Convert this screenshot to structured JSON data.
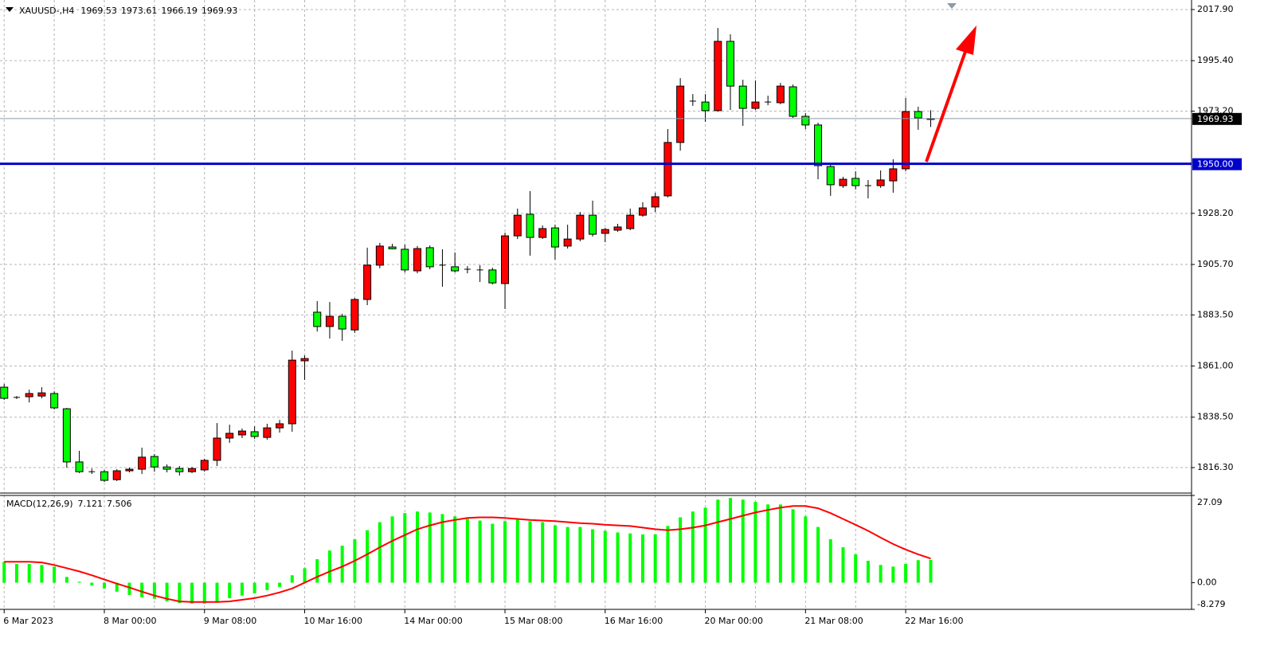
{
  "chart_data": [
    {
      "type": "candlestick",
      "symbol": "XAUUSD-,H4",
      "categories": [
        "6 Mar 2023",
        null,
        null,
        null,
        null,
        null,
        null,
        null,
        "8 Mar 00:00",
        null,
        null,
        null,
        null,
        null,
        null,
        null,
        "9 Mar 08:00",
        null,
        null,
        null,
        null,
        null,
        null,
        null,
        "10 Mar 16:00",
        null,
        null,
        null,
        null,
        null,
        null,
        null,
        "14 Mar 00:00",
        null,
        null,
        null,
        null,
        null,
        null,
        null,
        "15 Mar 08:00",
        null,
        null,
        null,
        null,
        null,
        null,
        null,
        "16 Mar 16:00",
        null,
        null,
        null,
        null,
        null,
        null,
        null,
        "20 Mar 00:00",
        null,
        null,
        null,
        null,
        null,
        null,
        null,
        "21 Mar 08:00",
        null,
        null,
        null,
        null,
        null,
        null,
        null,
        "22 Mar 16:00",
        null,
        null
      ],
      "open": [
        1851.7,
        1847.2,
        1847.5,
        1847.8,
        1848.9,
        1842.2,
        1818.8,
        1814.5,
        1814.5,
        1811.0,
        1814.9,
        1815.6,
        1821.2,
        1816.6,
        1815.9,
        1814.5,
        1815.3,
        1819.5,
        1829.3,
        1830.7,
        1832.1,
        1829.6,
        1833.8,
        1835.6,
        1863.3,
        1884.7,
        1878.4,
        1882.9,
        1876.9,
        1890.3,
        1905.4,
        1913.4,
        1912.4,
        1902.9,
        1913.1,
        1905.4,
        1904.7,
        1903.6,
        1903.3,
        1903.3,
        1897.3,
        1918.3,
        1927.8,
        1917.6,
        1921.8,
        1913.8,
        1916.9,
        1927.4,
        1919.4,
        1920.8,
        1921.5,
        1927.4,
        1931.0,
        1935.9,
        1959.4,
        1977.6,
        1977.2,
        1973.4,
        2003.9,
        1984.2,
        1974.4,
        1977.2,
        1976.9,
        1983.9,
        1970.9,
        1967.1,
        1948.8,
        1940.4,
        1943.6,
        1940.4,
        1940.4,
        1942.5,
        1947.8,
        1973.0,
        1969.53
      ],
      "high": [
        1853.1,
        1847.8,
        1850.6,
        1851.7,
        1849.9,
        1842.6,
        1823.7,
        1815.9,
        1815.3,
        1815.6,
        1816.3,
        1825.1,
        1822.3,
        1817.7,
        1817.0,
        1816.6,
        1820.2,
        1835.9,
        1835.2,
        1833.5,
        1834.5,
        1835.6,
        1837.3,
        1867.8,
        1865.7,
        1889.6,
        1889.2,
        1884.0,
        1891.0,
        1913.1,
        1915.2,
        1914.8,
        1914.5,
        1913.8,
        1914.1,
        1912.4,
        1911.0,
        1905.0,
        1905.4,
        1904.3,
        1919.7,
        1930.3,
        1938.0,
        1922.9,
        1923.2,
        1923.2,
        1928.8,
        1933.8,
        1921.8,
        1923.6,
        1930.3,
        1933.1,
        1937.3,
        1965.3,
        1987.7,
        1980.7,
        1980.7,
        2009.8,
        2007.0,
        1987.0,
        1986.7,
        1980.0,
        1985.6,
        1984.9,
        1972.3,
        1968.1,
        1949.9,
        1944.3,
        1946.7,
        1942.9,
        1947.1,
        1952.0,
        1979.0,
        1975.1,
        1973.61
      ],
      "low": [
        1846.1,
        1846.5,
        1845.0,
        1846.8,
        1841.9,
        1816.3,
        1813.9,
        1813.5,
        1810.0,
        1810.4,
        1814.2,
        1813.5,
        1814.5,
        1814.2,
        1812.8,
        1813.9,
        1814.5,
        1817.0,
        1827.2,
        1829.3,
        1828.9,
        1828.6,
        1831.7,
        1832.1,
        1854.9,
        1876.2,
        1873.1,
        1872.1,
        1875.6,
        1887.8,
        1904.0,
        1912.4,
        1902.2,
        1901.8,
        1903.6,
        1895.9,
        1902.2,
        1901.8,
        1898.0,
        1896.9,
        1886.1,
        1916.9,
        1909.6,
        1916.9,
        1907.8,
        1912.7,
        1915.9,
        1918.0,
        1915.5,
        1920.1,
        1920.8,
        1926.7,
        1928.8,
        1935.2,
        1955.8,
        1975.5,
        1968.5,
        1973.0,
        1973.7,
        1966.7,
        1973.7,
        1975.8,
        1976.2,
        1970.2,
        1965.3,
        1943.2,
        1935.9,
        1939.4,
        1938.7,
        1934.8,
        1939.4,
        1937.3,
        1946.7,
        1965.0,
        1966.19
      ],
      "close": [
        1846.8,
        1847.0,
        1848.9,
        1849.2,
        1842.6,
        1818.8,
        1814.5,
        1814.3,
        1810.7,
        1814.9,
        1815.6,
        1820.9,
        1816.6,
        1815.6,
        1814.5,
        1815.9,
        1819.5,
        1829.3,
        1831.4,
        1832.4,
        1830.0,
        1833.8,
        1835.6,
        1863.6,
        1864.3,
        1878.4,
        1882.9,
        1877.3,
        1890.3,
        1905.4,
        1913.8,
        1912.6,
        1903.3,
        1912.7,
        1904.7,
        1905.2,
        1902.9,
        1903.5,
        1903.1,
        1897.6,
        1918.3,
        1927.4,
        1917.6,
        1921.5,
        1913.4,
        1916.9,
        1927.4,
        1919.0,
        1921.1,
        1922.2,
        1927.4,
        1930.6,
        1935.5,
        1959.4,
        1984.2,
        1977.4,
        1973.4,
        2003.9,
        1984.2,
        1974.4,
        1977.2,
        1977.0,
        1984.2,
        1970.9,
        1967.1,
        1949.2,
        1940.8,
        1943.2,
        1940.4,
        1940.2,
        1942.9,
        1947.8,
        1973.0,
        1970.2,
        1969.93
      ],
      "up_color": "#ff0000",
      "down_color": "#00ff00",
      "ylim": [
        1805.1,
        2022.1
      ],
      "yticks": [
        {
          "value": 2017.9,
          "label": "2017.90"
        },
        {
          "value": 1995.4,
          "label": "1995.40"
        },
        {
          "value": 1973.2,
          "label": "1973.20"
        },
        {
          "value": 1928.2,
          "label": "1928.20"
        },
        {
          "value": 1905.7,
          "label": "1905.70"
        },
        {
          "value": 1883.5,
          "label": "1883.50"
        },
        {
          "value": 1861,
          "label": "1861.00"
        },
        {
          "value": 1838.5,
          "label": "1838.50"
        },
        {
          "value": 1816.3,
          "label": "1816.30"
        }
      ],
      "grid": true,
      "hline": {
        "value": 1950,
        "label": "1950.00",
        "color": "#0000cd"
      }
    },
    {
      "type": "macd",
      "title": "MACD(12,26,9)",
      "series": [
        {
          "kind": "bar",
          "color": "#00ff00",
          "values": [
            6.5,
            5.8,
            5.8,
            5.5,
            5.0,
            1.8,
            0.3,
            -0.8,
            -1.8,
            -2.8,
            -3.8,
            -4.5,
            -5.0,
            -5.8,
            -6.3,
            -6.5,
            -6.5,
            -5.8,
            -4.8,
            -4.0,
            -3.3,
            -2.3,
            -1.3,
            2.3,
            4.5,
            7.3,
            10.0,
            11.5,
            13.5,
            16.3,
            18.8,
            20.6,
            21.6,
            22.1,
            21.8,
            21.3,
            20.6,
            19.8,
            19.3,
            18.3,
            19.1,
            19.8,
            19.1,
            18.8,
            17.8,
            17.3,
            17.3,
            16.6,
            16.1,
            15.6,
            15.3,
            15.0,
            15.0,
            17.6,
            20.3,
            22.1,
            23.3,
            25.8,
            26.3,
            25.8,
            25.1,
            24.3,
            24.3,
            22.8,
            20.6,
            17.3,
            13.5,
            11.0,
            8.8,
            6.8,
            5.5,
            5.0,
            5.8,
            7.0,
            7.121
          ]
        },
        {
          "kind": "line",
          "color": "#ff0000",
          "values": [
            6.5,
            6.5,
            6.5,
            6.3,
            5.5,
            4.5,
            3.5,
            2.3,
            1.0,
            -0.3,
            -1.5,
            -2.8,
            -4.0,
            -5.0,
            -5.8,
            -6.0,
            -6.0,
            -6.0,
            -5.8,
            -5.3,
            -4.8,
            -4.0,
            -3.0,
            -1.8,
            0.0,
            1.8,
            3.5,
            5.0,
            6.8,
            8.8,
            11.0,
            13.0,
            14.8,
            16.6,
            17.8,
            18.8,
            19.5,
            20.1,
            20.3,
            20.3,
            20.1,
            19.8,
            19.5,
            19.3,
            19.1,
            18.8,
            18.5,
            18.3,
            18.0,
            17.8,
            17.6,
            17.1,
            16.6,
            16.3,
            16.6,
            17.1,
            17.8,
            18.8,
            19.8,
            20.8,
            21.8,
            22.6,
            23.3,
            23.8,
            23.8,
            23.1,
            21.6,
            19.8,
            18.0,
            16.1,
            14.0,
            12.0,
            10.3,
            8.8,
            7.506
          ]
        }
      ],
      "ylim": [
        -8.279,
        27.09
      ],
      "yticks": [
        27.09,
        {
          "value": 0,
          "label": "0.00"
        },
        -8.279
      ],
      "grid": true
    }
  ]
}
